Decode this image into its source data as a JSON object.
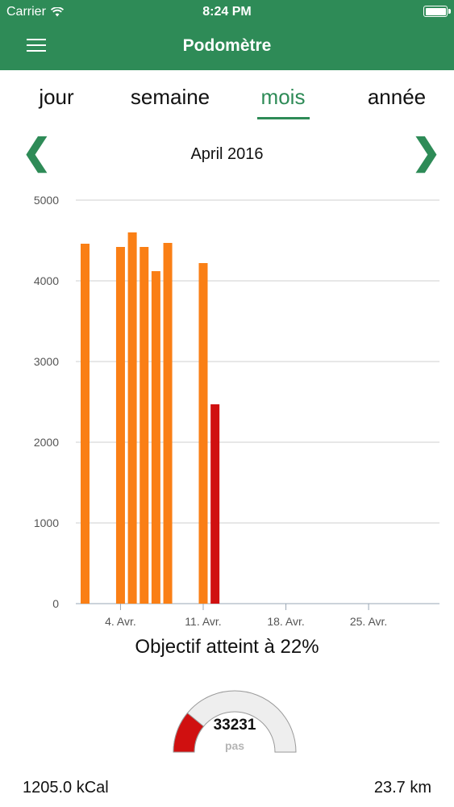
{
  "status_bar": {
    "carrier": "Carrier",
    "time": "8:24 PM",
    "wifi_icon": "wifi-icon",
    "battery_icon": "battery-icon"
  },
  "nav": {
    "title": "Podomètre",
    "menu_icon": "hamburger-menu-icon"
  },
  "tabs": [
    {
      "label": "jour",
      "active": false
    },
    {
      "label": "semaine",
      "active": false
    },
    {
      "label": "mois",
      "active": true
    },
    {
      "label": "année",
      "active": false
    }
  ],
  "period": {
    "label": "April 2016",
    "prev_icon": "chevron-left-icon",
    "next_icon": "chevron-right-icon"
  },
  "colors": {
    "brand": "#2e8b57",
    "bar_goal": "#fa7f15",
    "bar_current": "#d01010",
    "gauge_track": "#eeeeee",
    "grid": "#cfcfcf"
  },
  "chart_data": {
    "type": "bar",
    "ylim": [
      0,
      5000
    ],
    "yticks": [
      0,
      1000,
      2000,
      3000,
      4000,
      5000
    ],
    "xticks": [
      {
        "day": 4,
        "label": "4. Avr."
      },
      {
        "day": 11,
        "label": "11. Avr."
      },
      {
        "day": 18,
        "label": "18. Avr."
      },
      {
        "day": 25,
        "label": "25. Avr."
      }
    ],
    "grid": true,
    "bars": [
      {
        "day": 1,
        "value": 4460,
        "state": "goal"
      },
      {
        "day": 4,
        "value": 4420,
        "state": "goal"
      },
      {
        "day": 5,
        "value": 4600,
        "state": "goal"
      },
      {
        "day": 6,
        "value": 4420,
        "state": "goal"
      },
      {
        "day": 7,
        "value": 4120,
        "state": "goal"
      },
      {
        "day": 8,
        "value": 4470,
        "state": "goal"
      },
      {
        "day": 11,
        "value": 4220,
        "state": "goal"
      },
      {
        "day": 12,
        "value": 2470,
        "state": "current"
      }
    ]
  },
  "objective": "Objectif atteint à 22%",
  "gauge": {
    "value": "33231",
    "unit": "pas",
    "percent": 22
  },
  "footer": {
    "calories": "1205.0 kCal",
    "distance": "23.7 km"
  }
}
